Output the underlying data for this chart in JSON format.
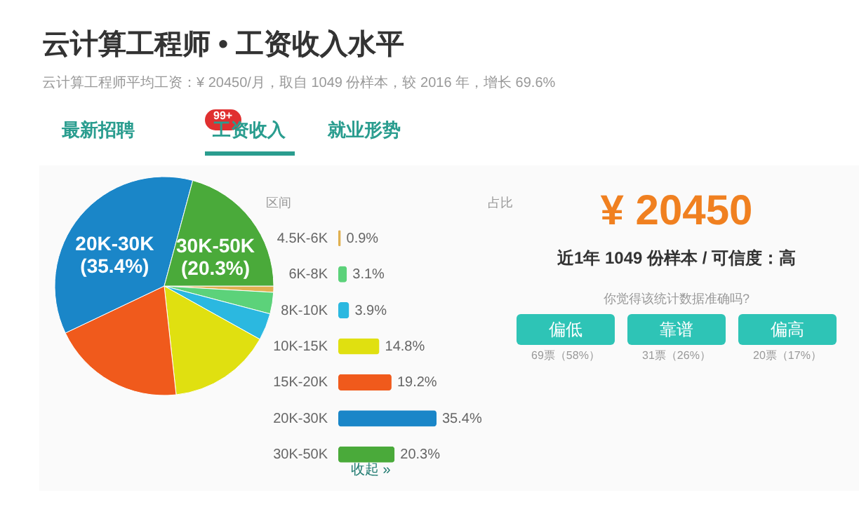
{
  "chart_data": [
    {
      "type": "pie",
      "title": "云计算工程师 • 工资收入水平",
      "subtitle": "云计算工程师平均工资：¥ 20450/月，取自 1049 份样本，较 2016 年，增长 69.6%",
      "annotations": [
        "最新招聘",
        "99+",
        "工资收入",
        "就业形势"
      ],
      "categories": [
        null,
        null,
        null,
        null,
        null,
        "20K-30K",
        "30K-50K"
      ],
      "values": [
        0.9,
        3.1,
        3.9,
        14.8,
        19.2,
        35.4,
        20.3
      ],
      "colors": [
        "#e0b050",
        "#5cd27a",
        "#2bb8e0",
        "#e0e010",
        "#f05a1c",
        "#1a86c8",
        "#4aaa3a"
      ],
      "value_labels": [
        null,
        null,
        null,
        null,
        null,
        "(35.4%)",
        "(20.3%)"
      ]
    },
    {
      "type": "bar",
      "orientation": "horizontal",
      "ylabel": "区间",
      "xlabel": "占比",
      "categories": [
        "4.5K-6K",
        "6K-8K",
        "8K-10K",
        "10K-15K",
        "15K-20K",
        "20K-30K",
        "30K-50K"
      ],
      "values": [
        0.9,
        3.1,
        3.9,
        14.8,
        19.2,
        35.4,
        20.3
      ],
      "colors": [
        "#e0b050",
        "#5cd27a",
        "#2bb8e0",
        "#e0e010",
        "#f05a1c",
        "#1a86c8",
        "#4aaa3a"
      ],
      "value_labels": [
        "0.9%",
        "3.1%",
        "3.9%",
        "14.8%",
        "19.2%",
        "35.4%",
        "20.3%"
      ],
      "annotations": [
        "收起 »"
      ]
    },
    {
      "type": "other",
      "title": "¥ 20450",
      "subtitle": "近1年 1049 份样本 / 可信度：高",
      "annotations": [
        "你觉得该统计数据准确吗?",
        "偏低",
        "靠谱",
        "偏高",
        "69票（58%）",
        "31票（26%）",
        "20票（17%）"
      ]
    }
  ]
}
